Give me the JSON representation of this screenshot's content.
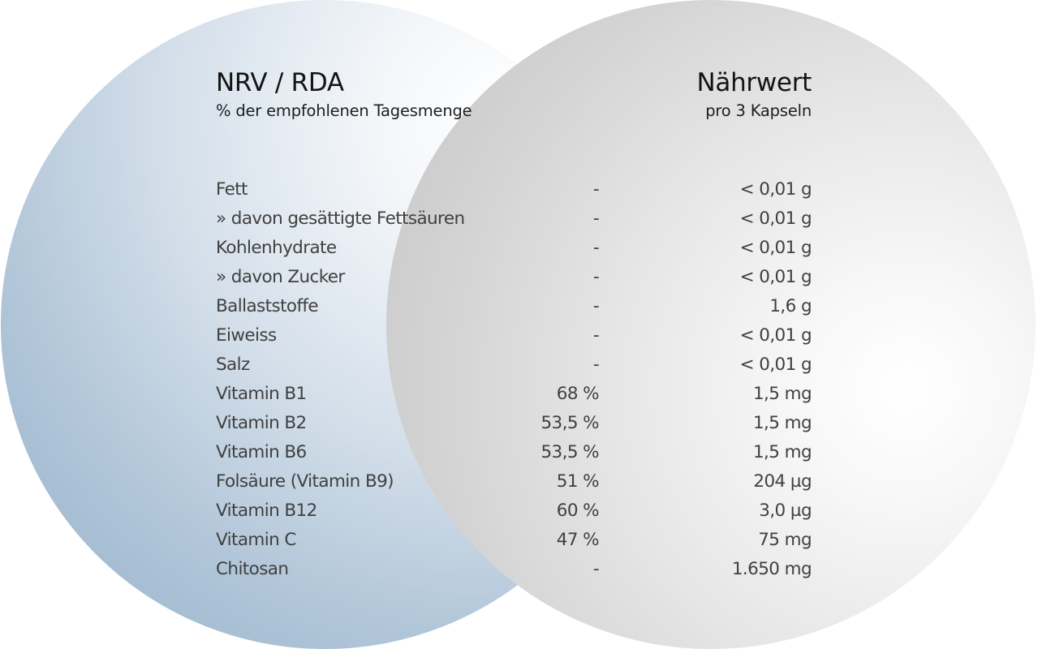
{
  "header": {
    "left_title": "NRV / RDA",
    "left_subtitle": "% der empfohlenen Tagesmenge",
    "right_title": "Nährwert",
    "right_subtitle": "pro 3 Kapseln"
  },
  "rows": [
    {
      "name": "Fett",
      "nrv": "-",
      "value": "< 0,01 g"
    },
    {
      "name": "» davon gesättigte Fettsäuren",
      "nrv": "-",
      "value": "< 0,01 g"
    },
    {
      "name": "Kohlenhydrate",
      "nrv": "-",
      "value": "< 0,01 g"
    },
    {
      "name": "» davon Zucker",
      "nrv": "-",
      "value": "< 0,01 g"
    },
    {
      "name": "Ballaststoffe",
      "nrv": "-",
      "value": "1,6 g"
    },
    {
      "name": "Eiweiss",
      "nrv": "-",
      "value": "< 0,01 g"
    },
    {
      "name": "Salz",
      "nrv": "-",
      "value": "< 0,01 g"
    },
    {
      "name": "Vitamin B1",
      "nrv": "68 %",
      "value": "1,5 mg"
    },
    {
      "name": "Vitamin B2",
      "nrv": "53,5 %",
      "value": "1,5 mg"
    },
    {
      "name": "Vitamin B6",
      "nrv": "53,5 %",
      "value": "1,5 mg"
    },
    {
      "name": "Folsäure (Vitamin B9)",
      "nrv": "51 %",
      "value": "204 µg"
    },
    {
      "name": "Vitamin B12",
      "nrv": "60 %",
      "value": "3,0 µg"
    },
    {
      "name": "Vitamin C",
      "nrv": "47 %",
      "value": "75 mg"
    },
    {
      "name": "Chitosan",
      "nrv": "-",
      "value": "1.650 mg"
    }
  ],
  "colors": {
    "blue_circle": "#93afc8",
    "grey_circle": "#c4c4c4",
    "text": "#404040",
    "heading": "#141414"
  }
}
